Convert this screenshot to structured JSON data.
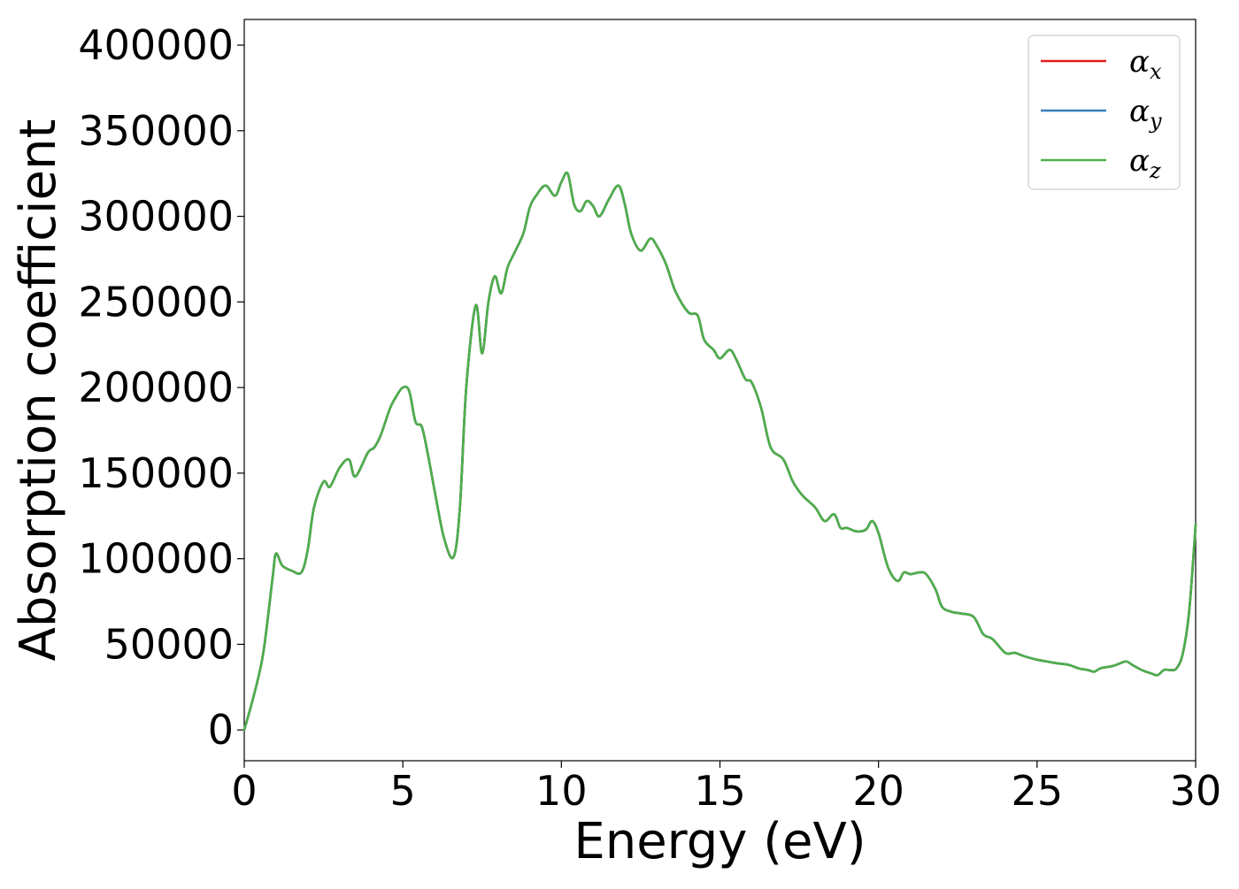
{
  "chart_data": {
    "type": "line",
    "xlabel": "Energy (eV)",
    "ylabel": "Absorption coefficient",
    "xlim": [
      0,
      30
    ],
    "ylim": [
      -18000,
      415000
    ],
    "xticks": [
      0,
      5,
      10,
      15,
      20,
      25,
      30
    ],
    "yticks": [
      0,
      50000,
      100000,
      150000,
      200000,
      250000,
      300000,
      350000,
      400000
    ],
    "grid": false,
    "legend_position": "top-right",
    "x": [
      0,
      0.3,
      0.6,
      0.9,
      1.0,
      1.2,
      1.5,
      1.8,
      2.0,
      2.2,
      2.5,
      2.7,
      3.0,
      3.3,
      3.5,
      3.9,
      4.1,
      4.3,
      4.6,
      4.8,
      5.0,
      5.2,
      5.4,
      5.6,
      5.8,
      6.0,
      6.3,
      6.6,
      6.8,
      7.0,
      7.3,
      7.5,
      7.7,
      7.9,
      8.1,
      8.3,
      8.5,
      8.8,
      9.0,
      9.2,
      9.5,
      9.8,
      10.0,
      10.2,
      10.4,
      10.6,
      10.8,
      11.0,
      11.2,
      11.5,
      11.8,
      12.0,
      12.2,
      12.5,
      12.8,
      13.0,
      13.3,
      13.6,
      14.0,
      14.3,
      14.5,
      14.8,
      15.0,
      15.3,
      15.5,
      15.8,
      16.0,
      16.3,
      16.6,
      17.0,
      17.3,
      17.6,
      18.0,
      18.3,
      18.6,
      18.8,
      19.0,
      19.3,
      19.6,
      19.8,
      20.0,
      20.3,
      20.6,
      20.8,
      21.0,
      21.3,
      21.5,
      21.8,
      22.0,
      22.3,
      22.6,
      23.0,
      23.3,
      23.6,
      24.0,
      24.3,
      24.6,
      25.0,
      25.3,
      25.6,
      26.0,
      26.3,
      26.6,
      26.8,
      27.0,
      27.3,
      27.5,
      27.8,
      28.0,
      28.3,
      28.6,
      28.8,
      29.0,
      29.2,
      29.4,
      29.6,
      29.8,
      30.0
    ],
    "series": [
      {
        "name": "αx",
        "color": "#e41a1c",
        "values": [
          0,
          20000,
          45000,
          90000,
          103000,
          96000,
          93000,
          92000,
          105000,
          130000,
          145000,
          142000,
          153000,
          158000,
          148000,
          162000,
          165000,
          172000,
          188000,
          195000,
          200000,
          198000,
          180000,
          177000,
          160000,
          140000,
          112000,
          101000,
          130000,
          200000,
          248000,
          220000,
          250000,
          265000,
          255000,
          270000,
          278000,
          290000,
          305000,
          312000,
          318000,
          312000,
          320000,
          325000,
          307000,
          303000,
          309000,
          306000,
          300000,
          310000,
          318000,
          307000,
          290000,
          280000,
          287000,
          283000,
          272000,
          256000,
          244000,
          242000,
          228000,
          222000,
          217000,
          222000,
          217000,
          205000,
          203000,
          188000,
          165000,
          158000,
          145000,
          137000,
          130000,
          122000,
          126000,
          118000,
          118000,
          116000,
          117000,
          122000,
          115000,
          95000,
          87000,
          92000,
          91000,
          92000,
          91000,
          82000,
          72000,
          69000,
          68000,
          66000,
          56000,
          53000,
          45000,
          45000,
          43000,
          41000,
          40000,
          39000,
          38000,
          36000,
          35000,
          34000,
          36000,
          37000,
          38000,
          40000,
          38000,
          35000,
          33000,
          32000,
          35000,
          35000,
          36000,
          45000,
          70000,
          120000
        ]
      },
      {
        "name": "αy",
        "color": "#377eb8",
        "values": [
          0,
          20000,
          45000,
          90000,
          103000,
          96000,
          93000,
          92000,
          105000,
          130000,
          145000,
          142000,
          153000,
          158000,
          148000,
          162000,
          165000,
          172000,
          188000,
          195000,
          200000,
          198000,
          180000,
          177000,
          160000,
          140000,
          112000,
          101000,
          130000,
          200000,
          248000,
          220000,
          250000,
          265000,
          255000,
          270000,
          278000,
          290000,
          305000,
          312000,
          318000,
          312000,
          320000,
          325000,
          307000,
          303000,
          309000,
          306000,
          300000,
          310000,
          318000,
          307000,
          290000,
          280000,
          287000,
          283000,
          272000,
          256000,
          244000,
          242000,
          228000,
          222000,
          217000,
          222000,
          217000,
          205000,
          203000,
          188000,
          165000,
          158000,
          145000,
          137000,
          130000,
          122000,
          126000,
          118000,
          118000,
          116000,
          117000,
          122000,
          115000,
          95000,
          87000,
          92000,
          91000,
          92000,
          91000,
          82000,
          72000,
          69000,
          68000,
          66000,
          56000,
          53000,
          45000,
          45000,
          43000,
          41000,
          40000,
          39000,
          38000,
          36000,
          35000,
          34000,
          36000,
          37000,
          38000,
          40000,
          38000,
          35000,
          33000,
          32000,
          35000,
          35000,
          36000,
          45000,
          70000,
          120000
        ]
      },
      {
        "name": "αz",
        "color": "#4daf4a",
        "values": [
          0,
          20000,
          45000,
          90000,
          103000,
          96000,
          93000,
          92000,
          105000,
          130000,
          145000,
          142000,
          153000,
          158000,
          148000,
          162000,
          165000,
          172000,
          188000,
          195000,
          200000,
          198000,
          180000,
          177000,
          160000,
          140000,
          112000,
          101000,
          130000,
          200000,
          248000,
          220000,
          250000,
          265000,
          255000,
          270000,
          278000,
          290000,
          305000,
          312000,
          318000,
          312000,
          320000,
          325000,
          307000,
          303000,
          309000,
          306000,
          300000,
          310000,
          318000,
          307000,
          290000,
          280000,
          287000,
          283000,
          272000,
          256000,
          244000,
          242000,
          228000,
          222000,
          217000,
          222000,
          217000,
          205000,
          203000,
          188000,
          165000,
          158000,
          145000,
          137000,
          130000,
          122000,
          126000,
          118000,
          118000,
          116000,
          117000,
          122000,
          115000,
          95000,
          87000,
          92000,
          91000,
          92000,
          91000,
          82000,
          72000,
          69000,
          68000,
          66000,
          56000,
          53000,
          45000,
          45000,
          43000,
          41000,
          40000,
          39000,
          38000,
          36000,
          35000,
          34000,
          36000,
          37000,
          38000,
          40000,
          38000,
          35000,
          33000,
          32000,
          35000,
          35000,
          36000,
          45000,
          70000,
          120000
        ]
      }
    ],
    "legend": [
      {
        "symbol": "α",
        "subscript": "x"
      },
      {
        "symbol": "α",
        "subscript": "y"
      },
      {
        "symbol": "α",
        "subscript": "z"
      }
    ]
  }
}
